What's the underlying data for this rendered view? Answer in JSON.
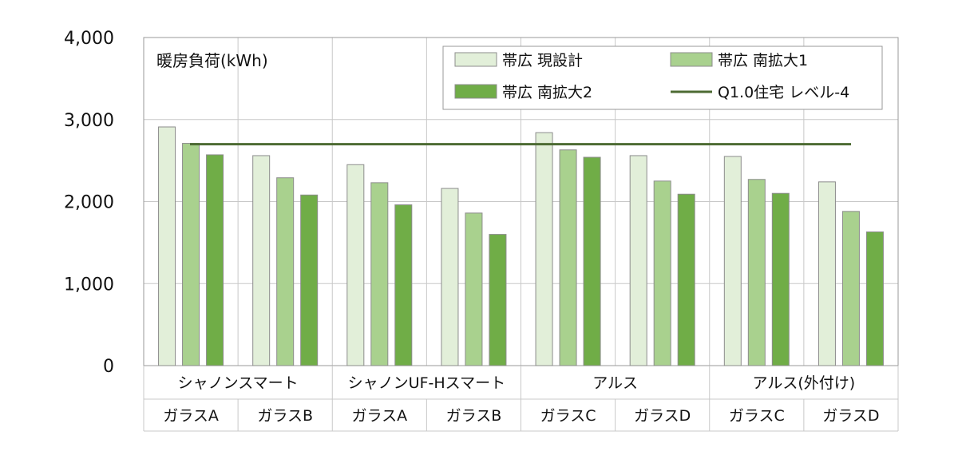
{
  "chart_data": {
    "type": "bar",
    "ylabel": "暖房負荷(kWh)",
    "ylim": [
      0,
      4000
    ],
    "yticks": [
      "0",
      "1,000",
      "2,000",
      "3,000",
      "4,000"
    ],
    "groups": [
      "シャノンスマート",
      "シャノンUF-Hスマート",
      "アルス",
      "アルス(外付け)"
    ],
    "categories": [
      "ガラスA",
      "ガラスB",
      "ガラスA",
      "ガラスB",
      "ガラスC",
      "ガラスD",
      "ガラスC",
      "ガラスD"
    ],
    "series": [
      {
        "name": "帯広 現設計",
        "color": "#e2efd9",
        "values": [
          2910,
          2560,
          2450,
          2160,
          2840,
          2560,
          2550,
          2240
        ]
      },
      {
        "name": "帯広 南拡大1",
        "color": "#a9d18e",
        "values": [
          2710,
          2290,
          2230,
          1860,
          2630,
          2250,
          2270,
          1880
        ]
      },
      {
        "name": "帯広 南拡大2",
        "color": "#70ad47",
        "values": [
          2570,
          2080,
          1960,
          1600,
          2540,
          2090,
          2100,
          1630
        ]
      }
    ],
    "reference_line": {
      "name": "Q1.0住宅 レベル-4",
      "value": 2700,
      "color": "#4d6b33"
    },
    "legend_position": "top-right",
    "grid": true
  }
}
